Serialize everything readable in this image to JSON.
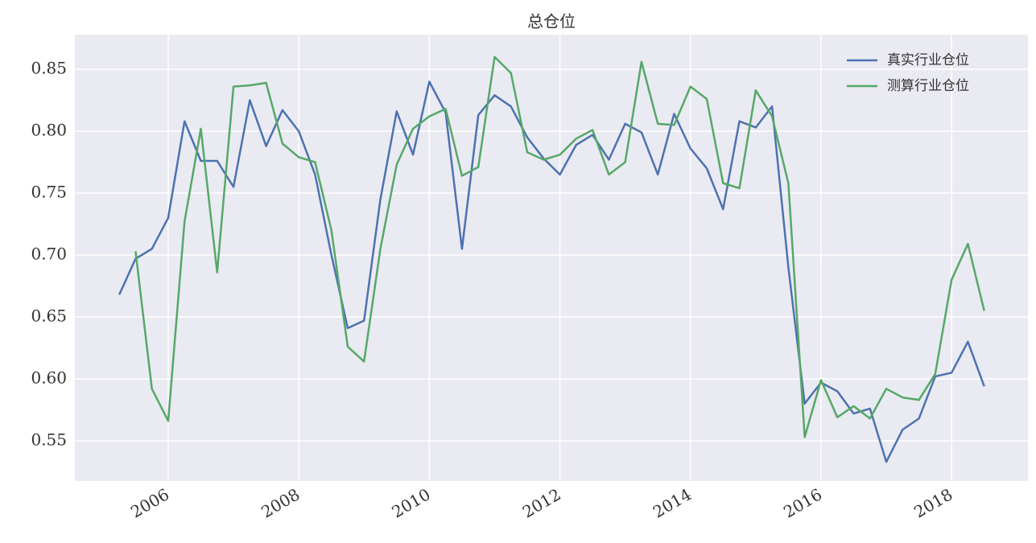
{
  "chart_data": {
    "type": "line",
    "title": "总仓位",
    "x": [
      2005.25,
      2005.5,
      2005.75,
      2006.0,
      2006.25,
      2006.5,
      2006.75,
      2007.0,
      2007.25,
      2007.5,
      2007.75,
      2008.0,
      2008.25,
      2008.5,
      2008.75,
      2009.0,
      2009.25,
      2009.5,
      2009.75,
      2010.0,
      2010.25,
      2010.5,
      2010.75,
      2011.0,
      2011.25,
      2011.5,
      2011.75,
      2012.0,
      2012.25,
      2012.5,
      2012.75,
      2013.0,
      2013.25,
      2013.5,
      2013.75,
      2014.0,
      2014.25,
      2014.5,
      2014.75,
      2015.0,
      2015.25,
      2015.5,
      2015.75,
      2016.0,
      2016.25,
      2016.5,
      2016.75,
      2017.0,
      2017.25,
      2017.5,
      2017.75,
      2018.0,
      2018.25,
      2018.5
    ],
    "series": [
      {
        "name": "真实行业仓位",
        "color": "#4c72b0",
        "values": [
          0.668,
          0.697,
          0.705,
          0.73,
          0.808,
          0.776,
          0.776,
          0.755,
          0.825,
          0.788,
          0.817,
          0.8,
          0.765,
          0.7,
          0.641,
          0.647,
          0.745,
          0.816,
          0.781,
          0.84,
          0.815,
          0.705,
          0.813,
          0.829,
          0.82,
          0.795,
          0.778,
          0.765,
          0.789,
          0.797,
          0.777,
          0.806,
          0.799,
          0.765,
          0.814,
          0.786,
          0.77,
          0.737,
          0.808,
          0.803,
          0.82,
          0.69,
          0.58,
          0.597,
          0.59,
          0.572,
          0.576,
          0.533,
          0.559,
          0.568,
          0.602,
          0.605,
          0.63,
          0.594
        ]
      },
      {
        "name": "测算行业仓位",
        "color": "#55a868",
        "values": [
          null,
          0.703,
          0.592,
          0.566,
          0.727,
          0.802,
          0.686,
          0.836,
          0.837,
          0.839,
          0.79,
          0.779,
          0.775,
          0.72,
          0.626,
          0.614,
          0.705,
          0.773,
          0.802,
          0.812,
          0.818,
          0.764,
          0.771,
          0.86,
          0.847,
          0.783,
          0.777,
          0.781,
          0.794,
          0.801,
          0.765,
          0.775,
          0.856,
          0.806,
          0.805,
          0.836,
          0.826,
          0.758,
          0.754,
          0.833,
          0.812,
          0.758,
          0.553,
          0.599,
          0.569,
          0.578,
          0.568,
          0.592,
          0.585,
          0.583,
          0.604,
          0.68,
          0.709,
          0.655
        ]
      }
    ],
    "xlim": [
      2004.57,
      2019.17
    ],
    "xticks": [
      2006,
      2008,
      2010,
      2012,
      2014,
      2016,
      2018
    ],
    "ylim": [
      0.5175,
      0.878
    ],
    "yticks": [
      0.55,
      {
        "value": 0.6,
        "label": "0.60"
      },
      0.65,
      {
        "value": 0.7,
        "label": "0.70"
      },
      0.75,
      {
        "value": 0.8,
        "label": "0.80"
      },
      0.85
    ],
    "grid": true,
    "legend": "upper right"
  }
}
